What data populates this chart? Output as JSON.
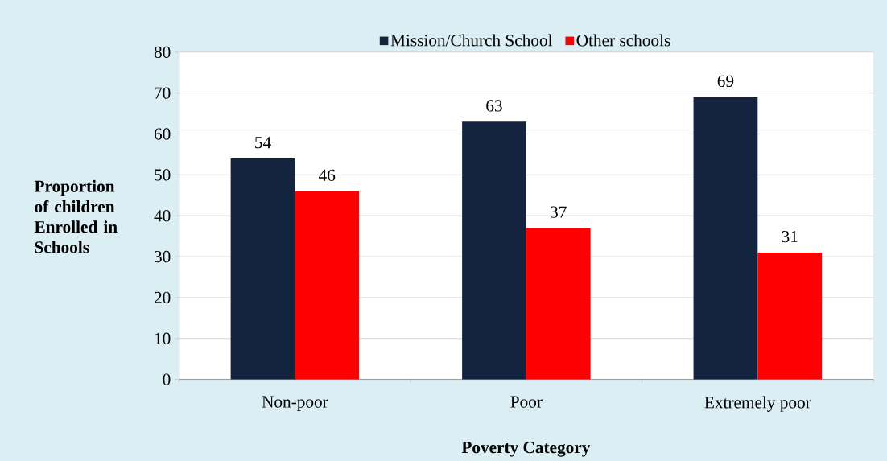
{
  "chart_data": {
    "type": "bar",
    "xlabel": "Poverty Category",
    "ylabel": "Proportion of children Enrolled in Schools",
    "categories": [
      "Non-poor",
      "Poor",
      "Extremely poor"
    ],
    "series": [
      {
        "name": "Mission/Church School",
        "color": "#14243f",
        "values": [
          54,
          63,
          69
        ]
      },
      {
        "name": "Other schools",
        "color": "#ff0000",
        "values": [
          46,
          37,
          31
        ]
      }
    ],
    "ylim": [
      0,
      80
    ],
    "yticks": [
      0,
      10,
      20,
      30,
      40,
      50,
      60,
      70,
      80
    ],
    "grid": "y",
    "legend": "top",
    "data_labels": true
  }
}
